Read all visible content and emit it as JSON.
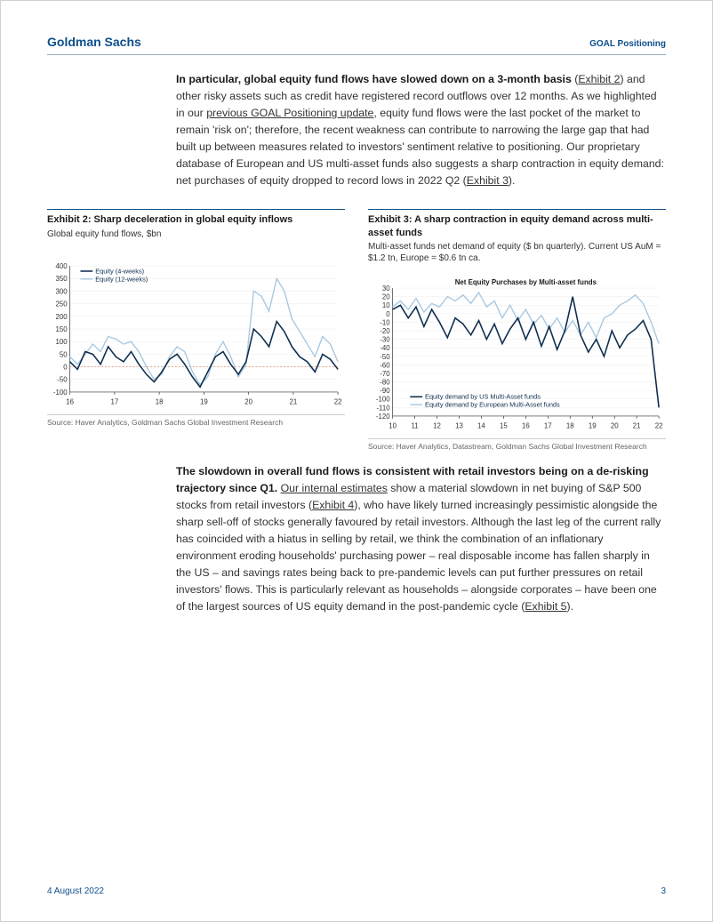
{
  "header": {
    "brand": "Goldman Sachs",
    "doc_title": "GOAL Positioning"
  },
  "para1": {
    "lead": "In particular, global equity fund flows have slowed down on a 3-month basis",
    "rest_a": " (",
    "link1": "Exhibit 2",
    "rest_b": ") and other risky assets such as credit have registered record outflows over 12 months. As we highlighted in our ",
    "link2": "previous GOAL Positioning update",
    "rest_c": ", equity fund flows were the last pocket of the market to remain 'risk on'; therefore, the recent weakness can contribute to narrowing the large gap that had built up between measures related to investors' sentiment relative to positioning. Our proprietary database of European and US multi-asset funds also suggests a sharp contraction in equity demand: net purchases of equity dropped to record lows in 2022 Q2 (",
    "link3": "Exhibit 3",
    "rest_d": ")."
  },
  "exhibit2": {
    "title": "Exhibit 2: Sharp deceleration in global equity inflows",
    "subtitle": "Global equity fund flows, $bn",
    "source": "Source: Haver Analytics, Goldman Sachs Global Investment Research",
    "legend1": "Equity (4-weeks)",
    "legend2": "Equity (12-weeks)",
    "colors": {
      "series1": "#0d2e4f",
      "series2": "#a8c8e0",
      "axis": "#333333",
      "grid": "#eeeeee",
      "zero_marker": "#d97a4a"
    },
    "ylim": [
      -100,
      400
    ],
    "ytick_step": 50,
    "x_labels": [
      "16",
      "17",
      "18",
      "19",
      "20",
      "21",
      "22"
    ],
    "series1_y": [
      20,
      -10,
      60,
      50,
      10,
      80,
      40,
      20,
      60,
      10,
      -30,
      -60,
      -20,
      30,
      50,
      10,
      -40,
      -80,
      -20,
      40,
      60,
      10,
      -30,
      20,
      150,
      120,
      80,
      180,
      140,
      80,
      40,
      20,
      -20,
      50,
      30,
      -10
    ],
    "series2_y": [
      40,
      10,
      50,
      90,
      60,
      120,
      110,
      90,
      100,
      60,
      0,
      -50,
      -30,
      40,
      80,
      60,
      -20,
      -70,
      -40,
      50,
      100,
      40,
      -40,
      10,
      300,
      280,
      220,
      350,
      300,
      190,
      140,
      90,
      40,
      120,
      90,
      20
    ]
  },
  "exhibit3": {
    "title": "Exhibit 3: A sharp contraction in equity demand across multi-asset funds",
    "subtitle": "Multi-asset funds net demand of equity ($ bn quarterly). Current US AuM = $1.2 tn, Europe = $0.6 tn ca.",
    "source": "Source: Haver Analytics, Datastream, Goldman Sachs Global Investment Research",
    "chart_title": "Net Equity Purchases by Multi-asset funds",
    "legend1": "Equity demand by US Multi-Asset funds",
    "legend2": "Equity demand by European Multi-Asset funds",
    "colors": {
      "series1": "#0d2e4f",
      "series2": "#a8c8e0",
      "axis": "#333333",
      "grid": "#eeeeee"
    },
    "ylim": [
      -120,
      30
    ],
    "ytick_step": 10,
    "x_labels": [
      "10",
      "11",
      "12",
      "13",
      "14",
      "15",
      "16",
      "17",
      "18",
      "19",
      "20",
      "21",
      "22"
    ],
    "series1_y": [
      5,
      10,
      -5,
      8,
      -15,
      5,
      -10,
      -28,
      -5,
      -12,
      -25,
      -8,
      -30,
      -12,
      -35,
      -18,
      -5,
      -30,
      -10,
      -38,
      -15,
      -42,
      -20,
      20,
      -25,
      -45,
      -30,
      -50,
      -20,
      -40,
      -25,
      -18,
      -8,
      -30,
      -110
    ],
    "series2_y": [
      8,
      15,
      5,
      18,
      2,
      12,
      8,
      20,
      15,
      22,
      12,
      25,
      8,
      15,
      -5,
      10,
      -8,
      5,
      -12,
      -2,
      -18,
      -5,
      -22,
      -8,
      -25,
      -10,
      -28,
      -5,
      0,
      10,
      15,
      22,
      12,
      -10,
      -35
    ]
  },
  "para2": {
    "lead": "The slowdown in overall fund flows is consistent with retail investors being on a de-risking trajectory since Q1.",
    "rest_a": " ",
    "link1": "Our internal estimates",
    "rest_b": " show a material slowdown in net buying of S&P 500 stocks from retail investors (",
    "link2": "Exhibit 4",
    "rest_c": "), who have likely turned increasingly pessimistic alongside the sharp sell-off of stocks generally favoured by retail investors. Although the last leg of the current rally has coincided with a hiatus in selling by retail, we think the combination of an inflationary environment eroding households' purchasing power – real disposable income has fallen sharply in the US – and savings rates being back to pre-pandemic levels can put further pressures on retail investors' flows. This is particularly relevant as households – alongside corporates – have been one of the largest sources of US equity demand in the post-pandemic cycle (",
    "link3": "Exhibit 5",
    "rest_d": ")."
  },
  "footer": {
    "date": "4 August 2022",
    "page": "3"
  }
}
